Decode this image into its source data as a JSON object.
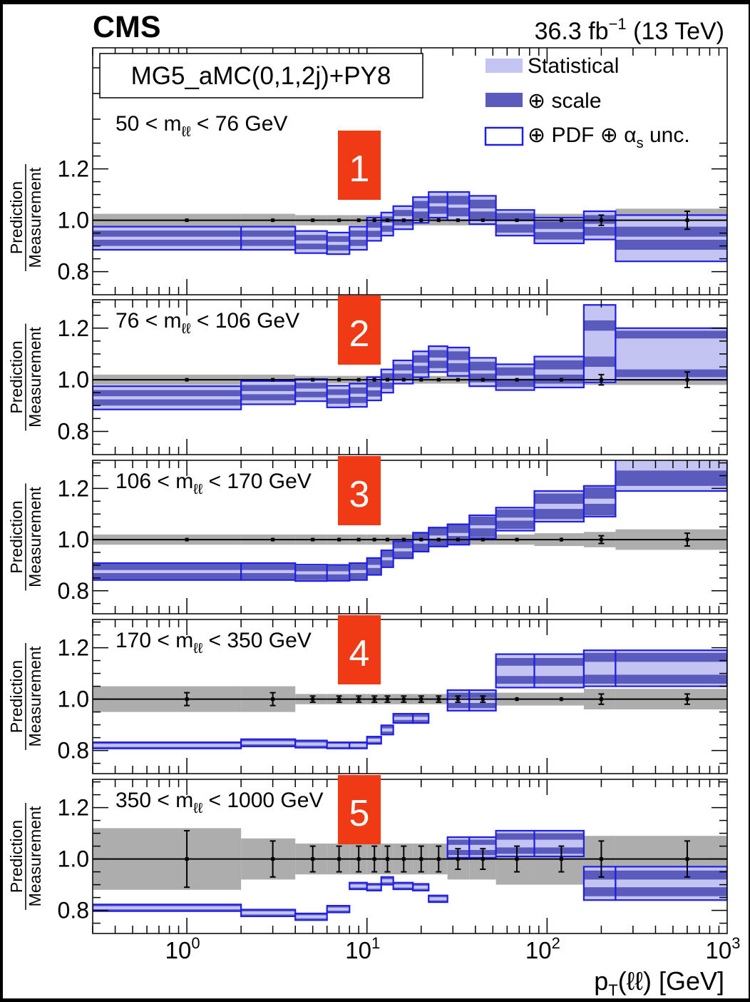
{
  "header": {
    "experiment": "CMS",
    "lumi_value": "36.3 fb",
    "lumi_exponent": "−1",
    "lumi_energy": " (13 TeV)"
  },
  "generator_label": "MG5_aMC(0,1,2j)+PY8",
  "legend": {
    "statistical": "Statistical",
    "scale": "⊕ scale",
    "pdf_prefix": "⊕ PDF ⊕ α",
    "pdf_sub": "s",
    "pdf_suffix": " unc."
  },
  "y_axis": {
    "numerator": "Prediction",
    "denominator": "Measurement",
    "ticks": [
      "1.2",
      "1.0",
      "0.8"
    ]
  },
  "x_axis": {
    "label_main": "p",
    "label_sub": "T",
    "label_rest": "(ℓℓ) [GeV]",
    "ticks": [
      {
        "value": 1,
        "base": "10",
        "exp": "0"
      },
      {
        "value": 10,
        "base": "10",
        "exp": "1"
      },
      {
        "value": 100,
        "base": "10",
        "exp": "2"
      },
      {
        "value": 1000,
        "base": "10",
        "exp": "3"
      }
    ]
  },
  "colors": {
    "statistical": "#c4c4f2",
    "scale": "#5b5bbd",
    "pdf_outline": "#1e1ee6",
    "measurement_band": "#adadad",
    "marker_badge": "#f03a16"
  },
  "chart_data": {
    "type": "ratio-bands",
    "x_scale": "log",
    "xlim": [
      0.3,
      1000
    ],
    "ylim": [
      0.71,
      1.31
    ],
    "bin_edges": [
      0.3,
      2,
      4,
      6,
      8,
      10,
      12,
      14,
      18,
      22,
      28,
      37,
      52,
      85,
      160,
      240,
      1000
    ],
    "panels": [
      {
        "marker": "1",
        "label_pre": "50 < m",
        "label_sub": "ℓℓ",
        "label_post": " < 76 GeV",
        "x_pos": [
          1,
          3,
          5,
          7,
          9,
          11,
          13,
          16,
          20,
          25,
          32,
          44,
          68,
          120,
          200,
          600
        ],
        "pred_center": [
          0.93,
          0.93,
          0.915,
          0.91,
          0.93,
          0.965,
          0.985,
          1.01,
          1.04,
          1.06,
          1.055,
          1.04,
          0.99,
          0.96,
          0.98,
          0.93
        ],
        "pred_stat": [
          0.006,
          0.006,
          0.006,
          0.006,
          0.006,
          0.006,
          0.006,
          0.006,
          0.006,
          0.006,
          0.006,
          0.006,
          0.006,
          0.006,
          0.006,
          0.006
        ],
        "pred_scale": [
          0.03,
          0.03,
          0.028,
          0.028,
          0.03,
          0.03,
          0.03,
          0.03,
          0.035,
          0.035,
          0.04,
          0.04,
          0.038,
          0.035,
          0.04,
          0.045
        ],
        "pred_total": [
          0.045,
          0.045,
          0.043,
          0.042,
          0.045,
          0.045,
          0.045,
          0.045,
          0.05,
          0.05,
          0.055,
          0.055,
          0.05,
          0.05,
          0.055,
          0.09
        ],
        "meas_band": [
          0.025,
          0.025,
          0.02,
          0.02,
          0.02,
          0.02,
          0.02,
          0.02,
          0.02,
          0.02,
          0.02,
          0.02,
          0.02,
          0.025,
          0.03,
          0.045
        ],
        "meas_err": [
          0.003,
          0.003,
          0.003,
          0.003,
          0.003,
          0.003,
          0.003,
          0.003,
          0.003,
          0.003,
          0.003,
          0.003,
          0.003,
          0.005,
          0.02,
          0.035
        ]
      },
      {
        "marker": "2",
        "label_pre": "76 < m",
        "label_sub": "ℓℓ",
        "label_post": " < 106 GeV",
        "x_pos": [
          1,
          3,
          5,
          7,
          9,
          11,
          13,
          16,
          20,
          25,
          32,
          44,
          68,
          120,
          200,
          600
        ],
        "pred_center": [
          0.93,
          0.95,
          0.96,
          0.935,
          0.94,
          0.965,
          0.995,
          1.03,
          1.06,
          1.08,
          1.07,
          1.03,
          1.01,
          1.03,
          1.14,
          1.1
        ],
        "pred_stat": [
          0.006,
          0.006,
          0.006,
          0.006,
          0.006,
          0.006,
          0.006,
          0.006,
          0.006,
          0.006,
          0.006,
          0.006,
          0.006,
          0.01,
          0.05,
          0.06
        ],
        "pred_scale": [
          0.03,
          0.03,
          0.028,
          0.028,
          0.03,
          0.03,
          0.03,
          0.03,
          0.035,
          0.035,
          0.04,
          0.04,
          0.038,
          0.045,
          0.09,
          0.09
        ],
        "pred_total": [
          0.045,
          0.045,
          0.043,
          0.042,
          0.045,
          0.045,
          0.045,
          0.045,
          0.05,
          0.05,
          0.055,
          0.055,
          0.05,
          0.06,
          0.15,
          0.1
        ],
        "meas_band": [
          0.02,
          0.02,
          0.015,
          0.015,
          0.015,
          0.015,
          0.015,
          0.015,
          0.015,
          0.015,
          0.015,
          0.015,
          0.015,
          0.015,
          0.02,
          0.02
        ],
        "meas_err": [
          0.002,
          0.002,
          0.002,
          0.002,
          0.002,
          0.002,
          0.002,
          0.002,
          0.002,
          0.002,
          0.002,
          0.002,
          0.002,
          0.004,
          0.02,
          0.03
        ]
      },
      {
        "marker": "3",
        "label_pre": "106 < m",
        "label_sub": "ℓℓ",
        "label_post": " < 170 GeV",
        "x_pos": [
          1,
          3,
          5,
          7,
          9,
          11,
          13,
          16,
          20,
          25,
          32,
          44,
          68,
          120,
          200,
          600
        ],
        "pred_center": [
          0.875,
          0.875,
          0.87,
          0.87,
          0.875,
          0.895,
          0.925,
          0.96,
          0.99,
          1.01,
          1.02,
          1.05,
          1.08,
          1.13,
          1.15,
          1.29
        ],
        "pred_stat": [
          0.006,
          0.006,
          0.006,
          0.006,
          0.006,
          0.006,
          0.006,
          0.006,
          0.006,
          0.006,
          0.006,
          0.006,
          0.006,
          0.01,
          0.01,
          0.02
        ],
        "pred_scale": [
          0.03,
          0.03,
          0.028,
          0.028,
          0.03,
          0.03,
          0.03,
          0.03,
          0.035,
          0.035,
          0.04,
          0.04,
          0.038,
          0.05,
          0.055,
          0.08
        ],
        "pred_total": [
          0.033,
          0.033,
          0.032,
          0.031,
          0.033,
          0.033,
          0.033,
          0.033,
          0.037,
          0.037,
          0.04,
          0.045,
          0.045,
          0.06,
          0.06,
          0.1
        ],
        "meas_band": [
          0.02,
          0.02,
          0.02,
          0.02,
          0.02,
          0.02,
          0.02,
          0.02,
          0.02,
          0.02,
          0.02,
          0.02,
          0.02,
          0.025,
          0.03,
          0.04
        ],
        "meas_err": [
          0.004,
          0.004,
          0.004,
          0.004,
          0.004,
          0.004,
          0.004,
          0.004,
          0.004,
          0.004,
          0.004,
          0.004,
          0.004,
          0.008,
          0.015,
          0.025
        ]
      },
      {
        "marker": "4",
        "label_pre": "170 < m",
        "label_sub": "ℓℓ",
        "label_post": " < 350 GeV",
        "x_pos": [
          1,
          3,
          5,
          7,
          9,
          11,
          13,
          16,
          20,
          25,
          32,
          44,
          68,
          120,
          200,
          600
        ],
        "pred_center": [
          0.82,
          0.83,
          0.825,
          0.82,
          0.82,
          0.84,
          0.88,
          0.925,
          0.925,
          null,
          0.995,
          0.995,
          1.11,
          1.11,
          1.12,
          1.12
        ],
        "pred_stat": [
          0.006,
          0.006,
          0.006,
          0.006,
          0.006,
          0.006,
          0.006,
          0.006,
          0.006,
          null,
          0.01,
          0.01,
          0.02,
          0.02,
          0.025,
          0.025
        ],
        "pred_scale": [
          0.01,
          0.012,
          0.012,
          0.01,
          0.01,
          0.012,
          0.015,
          0.015,
          0.015,
          null,
          0.03,
          0.03,
          0.05,
          0.05,
          0.06,
          0.06
        ],
        "pred_total": [
          0.012,
          0.014,
          0.014,
          0.012,
          0.012,
          0.014,
          0.018,
          0.018,
          0.018,
          null,
          0.04,
          0.04,
          0.065,
          0.065,
          0.07,
          0.07
        ],
        "meas_band": [
          0.05,
          0.05,
          0.02,
          0.02,
          0.02,
          0.02,
          0.02,
          0.02,
          0.02,
          0.02,
          0.02,
          0.02,
          0.025,
          0.025,
          0.04,
          0.04
        ],
        "meas_err": [
          0.025,
          0.025,
          0.012,
          0.012,
          0.012,
          0.012,
          0.012,
          0.012,
          0.012,
          0.012,
          0.012,
          0.012,
          0.008,
          0.008,
          0.02,
          0.02
        ]
      },
      {
        "marker": "5",
        "label_pre": "350 < m",
        "label_sub": "ℓℓ",
        "label_post": " < 1000 GeV",
        "x_pos": [
          1,
          3,
          5,
          7,
          9,
          11,
          13,
          16,
          20,
          25,
          32,
          44,
          68,
          120,
          200,
          600
        ],
        "pred_center": [
          0.81,
          0.79,
          0.775,
          0.805,
          0.895,
          0.89,
          0.915,
          0.895,
          0.89,
          0.845,
          1.045,
          1.045,
          1.06,
          1.06,
          0.905,
          0.905
        ],
        "pred_stat": [
          0.006,
          0.006,
          0.006,
          0.006,
          0.006,
          0.006,
          0.006,
          0.006,
          0.006,
          0.006,
          0.01,
          0.01,
          0.015,
          0.015,
          0.015,
          0.015
        ],
        "pred_scale": [
          0.01,
          0.01,
          0.01,
          0.01,
          0.01,
          0.01,
          0.012,
          0.01,
          0.01,
          0.01,
          0.03,
          0.03,
          0.04,
          0.04,
          0.05,
          0.05
        ],
        "pred_total": [
          0.013,
          0.013,
          0.013,
          0.013,
          0.013,
          0.013,
          0.015,
          0.013,
          0.013,
          0.013,
          0.04,
          0.04,
          0.05,
          0.05,
          0.065,
          0.065
        ],
        "meas_band": [
          0.12,
          0.08,
          0.06,
          0.06,
          0.06,
          0.06,
          0.06,
          0.06,
          0.06,
          0.06,
          0.08,
          0.08,
          0.1,
          0.1,
          0.09,
          0.09
        ],
        "meas_err": [
          0.11,
          0.07,
          0.05,
          0.05,
          0.05,
          0.05,
          0.05,
          0.05,
          0.05,
          0.05,
          0.04,
          0.04,
          0.05,
          0.05,
          0.07,
          0.07
        ]
      }
    ]
  }
}
